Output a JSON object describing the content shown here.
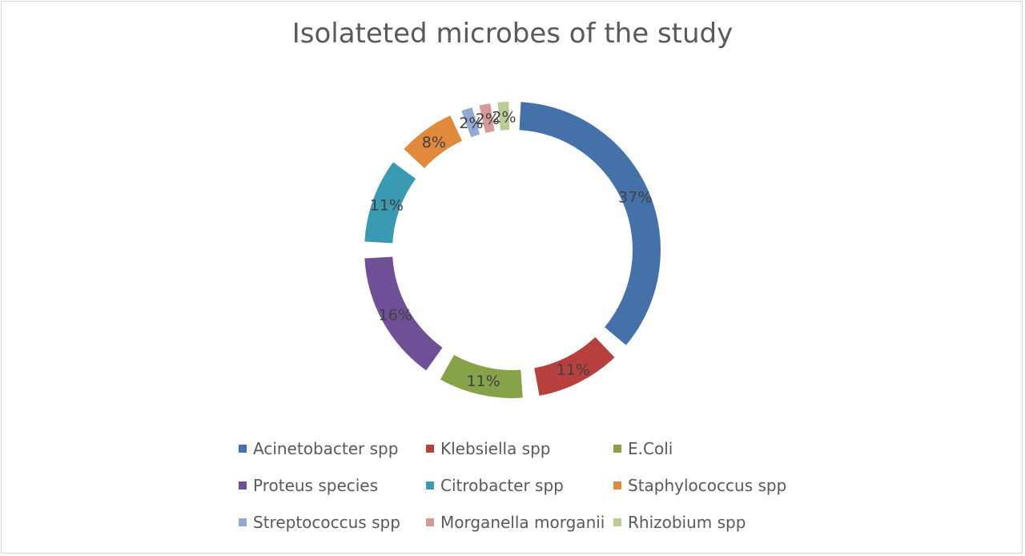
{
  "chart_data": {
    "type": "pie",
    "variant": "doughnut",
    "title": "Isolateted microbes of the study",
    "legend_position": "bottom",
    "slices": [
      {
        "name": "Acinetobacter spp",
        "value": 37,
        "label": "37%",
        "color": "#4472A8"
      },
      {
        "name": "Klebsiella spp",
        "value": 11,
        "label": "11%",
        "color": "#B7403E"
      },
      {
        "name": "E.Coli",
        "value": 11,
        "label": "11%",
        "color": "#86A34A"
      },
      {
        "name": "Proteus species",
        "value": 16,
        "label": "16%",
        "color": "#6F5097"
      },
      {
        "name": "Citrobacter spp",
        "value": 11,
        "label": "11%",
        "color": "#3A9AB2"
      },
      {
        "name": "Staphylococcus spp",
        "value": 8,
        "label": "8%",
        "color": "#E28A3B"
      },
      {
        "name": "Streptococcus spp",
        "value": 2,
        "label": "2%",
        "color": "#93A9D2"
      },
      {
        "name": "Morganella morganii",
        "value": 2,
        "label": "2%",
        "color": "#D59998"
      },
      {
        "name": "Rhizobium spp",
        "value": 2,
        "label": "2%",
        "color": "#B9CC94"
      }
    ]
  }
}
